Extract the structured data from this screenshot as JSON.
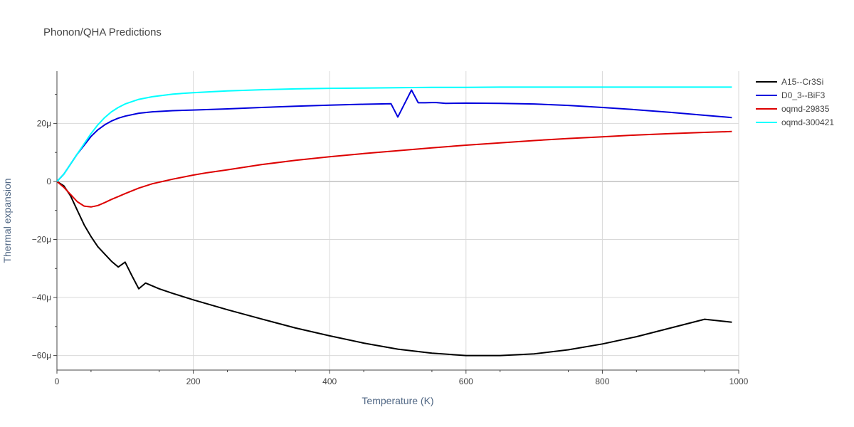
{
  "chart_data": {
    "type": "line",
    "title": "Phonon/QHA Predictions",
    "xlabel": "Temperature (K)",
    "ylabel": "Thermal expansion",
    "xlim": [
      0,
      1000
    ],
    "ylim": [
      -65,
      38
    ],
    "x_ticks": [
      0,
      200,
      400,
      600,
      800,
      1000
    ],
    "x_tick_labels": [
      "0",
      "200",
      "400",
      "600",
      "800",
      "1000"
    ],
    "y_ticks": [
      -60,
      -40,
      -20,
      0,
      20
    ],
    "y_tick_labels": [
      "−60μ",
      "−40μ",
      "−20μ",
      "0",
      "20μ"
    ],
    "grid": true,
    "legend_position": "top-right",
    "series": [
      {
        "name": "A15--Cr3Si",
        "color": "#000000",
        "x": [
          0,
          10,
          20,
          30,
          40,
          50,
          60,
          70,
          80,
          90,
          100,
          110,
          120,
          130,
          150,
          170,
          200,
          250,
          300,
          350,
          400,
          450,
          500,
          550,
          600,
          650,
          700,
          750,
          800,
          850,
          900,
          950,
          990
        ],
        "y": [
          0,
          -1.5,
          -5,
          -10,
          -15,
          -19,
          -22.5,
          -25,
          -27.5,
          -29.5,
          -27.8,
          -32.5,
          -37,
          -35,
          -37,
          -38.6,
          -40.8,
          -44.2,
          -47.4,
          -50.5,
          -53.2,
          -55.7,
          -57.8,
          -59.2,
          -60,
          -60,
          -59.4,
          -58,
          -56,
          -53.5,
          -50.5,
          -47.5,
          -48.5
        ]
      },
      {
        "name": "D0_3--BiF3",
        "color": "#0000dd",
        "x": [
          0,
          10,
          20,
          30,
          40,
          50,
          60,
          70,
          80,
          90,
          100,
          120,
          140,
          170,
          200,
          250,
          300,
          350,
          400,
          450,
          490,
          500,
          520,
          530,
          540,
          555,
          570,
          600,
          650,
          700,
          750,
          800,
          850,
          900,
          950,
          990
        ],
        "y": [
          0,
          2.5,
          6,
          9.5,
          12.5,
          15.5,
          17.8,
          19.5,
          20.8,
          21.8,
          22.5,
          23.5,
          24,
          24.4,
          24.6,
          25,
          25.5,
          25.9,
          26.3,
          26.6,
          26.8,
          22.2,
          31.5,
          27.1,
          27.1,
          27.2,
          26.9,
          27,
          26.9,
          26.7,
          26.2,
          25.5,
          24.7,
          23.8,
          22.8,
          22
        ]
      },
      {
        "name": "oqmd-29835",
        "color": "#dd0000",
        "x": [
          0,
          10,
          20,
          30,
          40,
          50,
          60,
          70,
          80,
          90,
          100,
          120,
          140,
          170,
          200,
          220,
          250,
          300,
          350,
          400,
          450,
          500,
          550,
          600,
          650,
          700,
          750,
          800,
          850,
          900,
          950,
          990
        ],
        "y": [
          0,
          -2,
          -4.5,
          -7,
          -8.5,
          -8.8,
          -8.3,
          -7.3,
          -6.2,
          -5.2,
          -4.2,
          -2.3,
          -0.8,
          0.8,
          2.2,
          3,
          4,
          5.8,
          7.3,
          8.5,
          9.6,
          10.6,
          11.6,
          12.5,
          13.3,
          14.1,
          14.8,
          15.4,
          16,
          16.5,
          16.9,
          17.2
        ]
      },
      {
        "name": "oqmd-300421",
        "color": "#00ffff",
        "x": [
          0,
          10,
          20,
          30,
          40,
          50,
          60,
          70,
          80,
          90,
          100,
          120,
          140,
          170,
          200,
          250,
          300,
          350,
          400,
          450,
          500,
          550,
          600,
          650,
          700,
          750,
          800,
          850,
          900,
          950,
          990
        ],
        "y": [
          0,
          2.5,
          6,
          9.5,
          13,
          16.5,
          19.5,
          22,
          24,
          25.5,
          26.7,
          28.3,
          29.2,
          30.1,
          30.6,
          31.2,
          31.6,
          31.9,
          32.1,
          32.2,
          32.3,
          32.4,
          32.4,
          32.5,
          32.5,
          32.5,
          32.5,
          32.5,
          32.5,
          32.5,
          32.5
        ]
      }
    ]
  }
}
